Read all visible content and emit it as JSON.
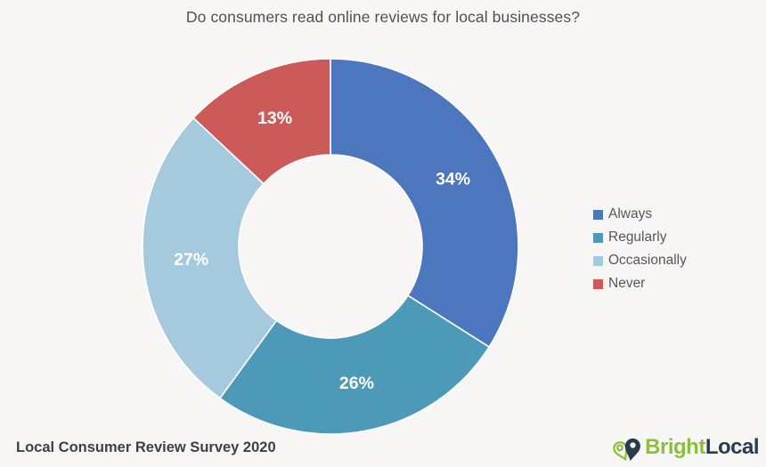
{
  "title": "Do consumers read online reviews for local businesses?",
  "footer": {
    "source_label": "Local Consumer Review Survey 2020"
  },
  "logo": {
    "bright": "Bright",
    "local": "Local",
    "green": "#8cbf3f",
    "navy": "#2b3b4e"
  },
  "colors": {
    "background": "#f7f6f4",
    "title_text": "#515154",
    "legend_text": "#55575b",
    "footer_text": "#3e4044",
    "slice_label_text": "#ffffff",
    "slice_separator": "#ffffff"
  },
  "chart_data": {
    "type": "pie",
    "subtype": "donut",
    "title": "Do consumers read online reviews for local businesses?",
    "categories": [
      "Always",
      "Regularly",
      "Occasionally",
      "Never"
    ],
    "values": [
      34,
      26,
      27,
      13
    ],
    "labels": [
      "34%",
      "26%",
      "27%",
      "13%"
    ],
    "slice_colors": [
      "#4c76bd",
      "#4c9ab7",
      "#a6cadd",
      "#cb5a59"
    ],
    "unit": "%",
    "start_angle_deg": 0,
    "direction": "clockwise",
    "donut_hole_ratio": 0.49,
    "legend_position": "right"
  }
}
